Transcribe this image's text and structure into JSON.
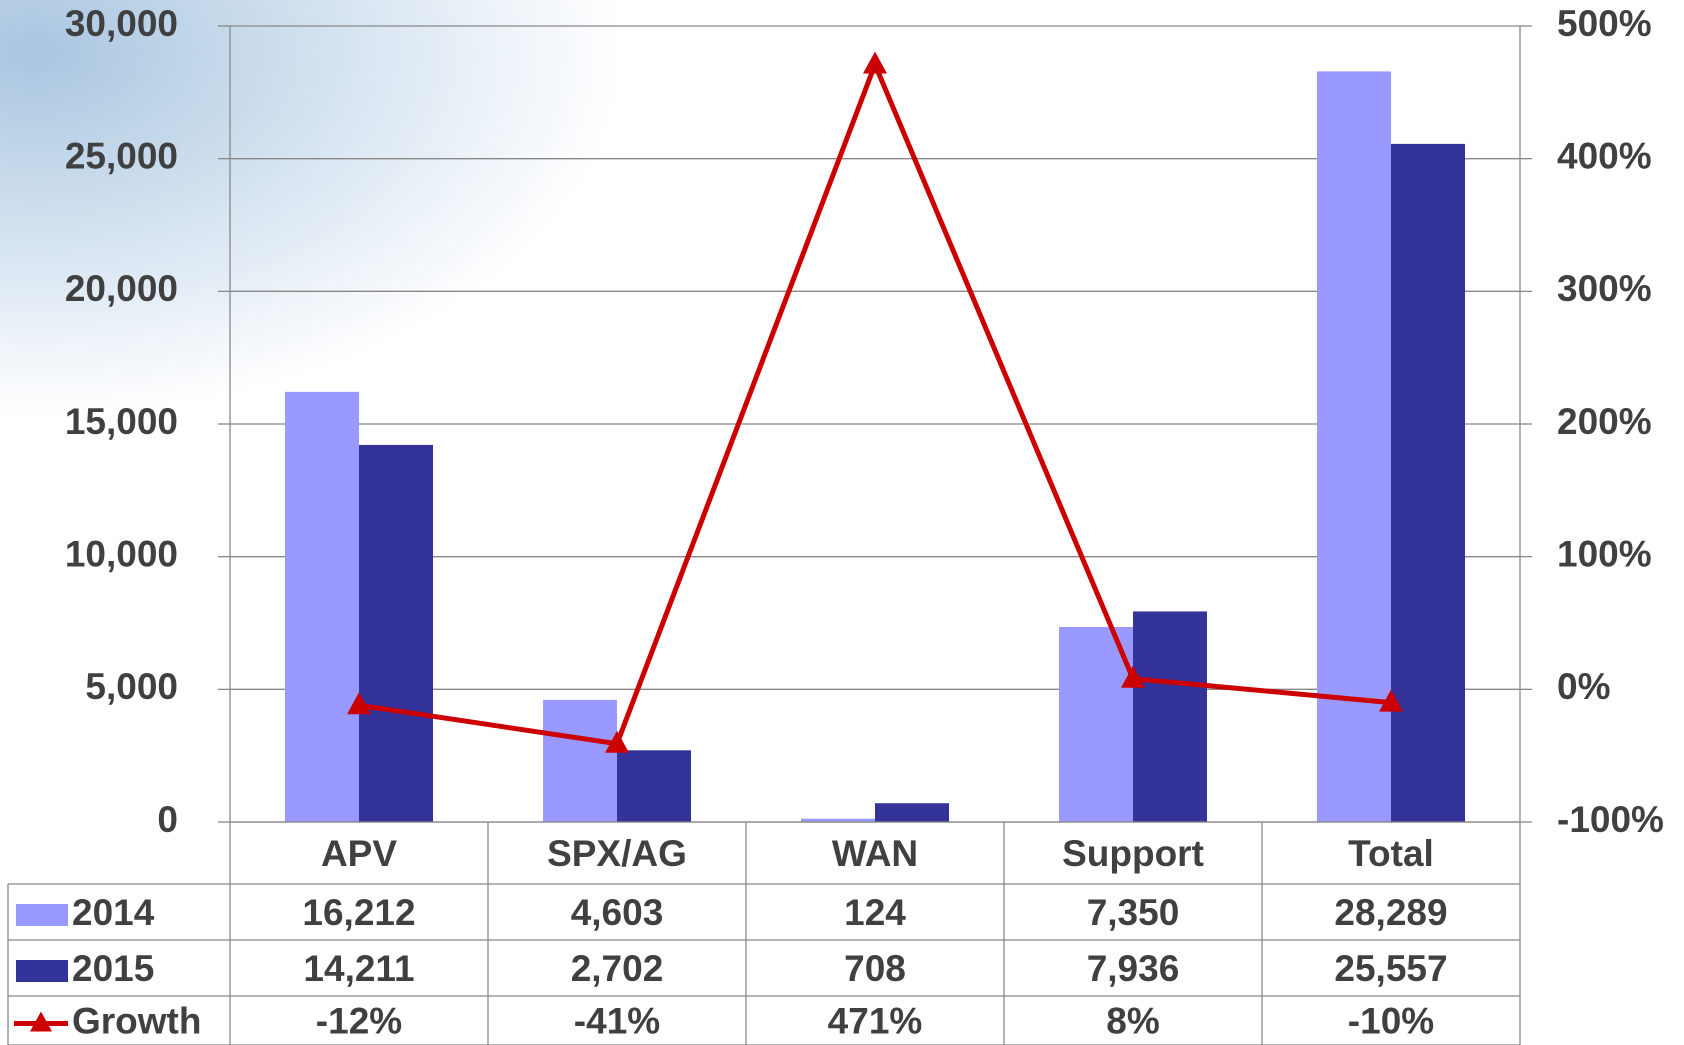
{
  "chart_data": {
    "type": "bar_line_table",
    "categories": [
      "APV",
      "SPX/AG",
      "WAN",
      "Support",
      "Total"
    ],
    "series": [
      {
        "name": "2014",
        "color": "#9999ff",
        "values": [
          16212,
          4603,
          124,
          7350,
          28289
        ],
        "value_labels": [
          "16,212",
          "4,603",
          "124",
          "7,350",
          "28,289"
        ]
      },
      {
        "name": "2015",
        "color": "#333399",
        "values": [
          14211,
          2702,
          708,
          7936,
          25557
        ],
        "value_labels": [
          "14,211",
          "2,702",
          "708",
          "7,936",
          "25,557"
        ]
      },
      {
        "name": "Growth",
        "color": "#cc0000",
        "axis": "y2",
        "values": [
          -12,
          -41,
          471,
          8,
          -10
        ],
        "value_labels": [
          "-12%",
          "-41%",
          "471%",
          "8%",
          "-10%"
        ]
      }
    ],
    "ylim": [
      0,
      30000
    ],
    "yticks": [
      0,
      {
        "value": 5000,
        "label": "5,000"
      },
      {
        "value": 10000,
        "label": "10,000"
      },
      {
        "value": 15000,
        "label": "15,000"
      },
      {
        "value": 20000,
        "label": "20,000"
      },
      {
        "value": 25000,
        "label": "25,000"
      },
      {
        "value": 30000,
        "label": "30,000"
      }
    ],
    "y2lim": [
      -100,
      500
    ],
    "y2ticks": [
      {
        "value": -100,
        "label": "-100%"
      },
      {
        "value": 0,
        "label": "0%"
      },
      {
        "value": 100,
        "label": "100%"
      },
      {
        "value": 200,
        "label": "200%"
      },
      {
        "value": 300,
        "label": "300%"
      },
      {
        "value": 400,
        "label": "400%"
      },
      {
        "value": 500,
        "label": "500%"
      }
    ],
    "grid": true
  }
}
